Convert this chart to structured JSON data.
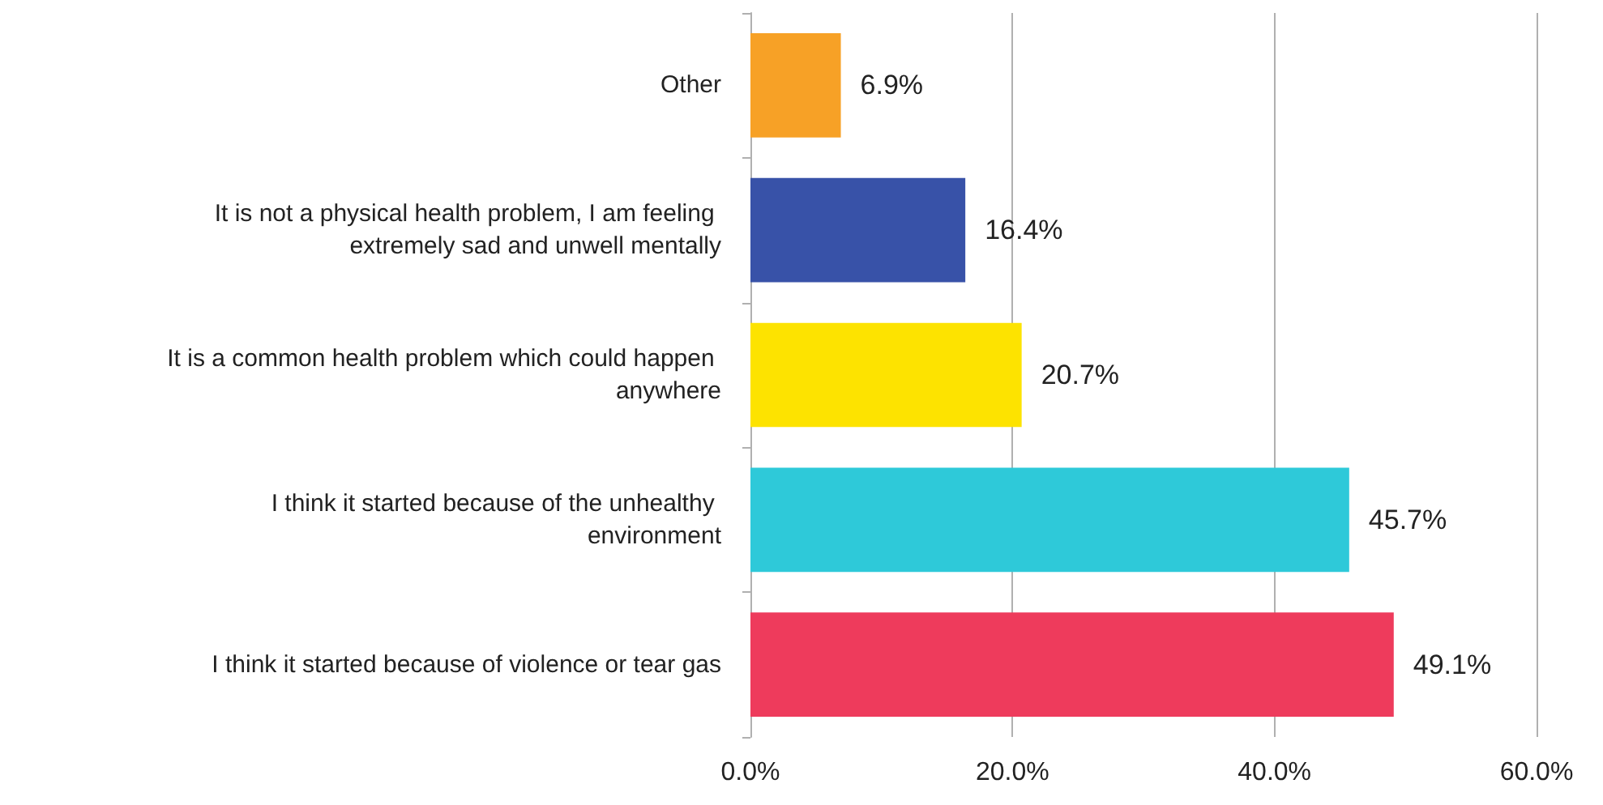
{
  "chart_data": {
    "type": "bar",
    "orientation": "horizontal",
    "categories": [
      "Other",
      "It is not a physical health problem, I am feeling extremely sad and unwell mentally",
      "It is a common health problem which could happen anywhere",
      "I think it started because of the unhealthy environment",
      "I think it started because of violence or tear gas"
    ],
    "values": [
      6.9,
      16.4,
      20.7,
      45.7,
      49.1
    ],
    "colors": [
      "#f7a126",
      "#3852a8",
      "#fde300",
      "#2ec9d9",
      "#ee3b5c"
    ],
    "value_labels": [
      "6.9%",
      "16.4%",
      "20.7%",
      "45.7%",
      "49.1%"
    ],
    "xlim": [
      0,
      60
    ],
    "xticks": [
      {
        "value": 0,
        "label": "0.0%"
      },
      {
        "value": 20,
        "label": "20.0%"
      },
      {
        "value": 40,
        "label": "40.0%"
      },
      {
        "value": 60,
        "label": "60.0%"
      }
    ],
    "grid": "x"
  }
}
